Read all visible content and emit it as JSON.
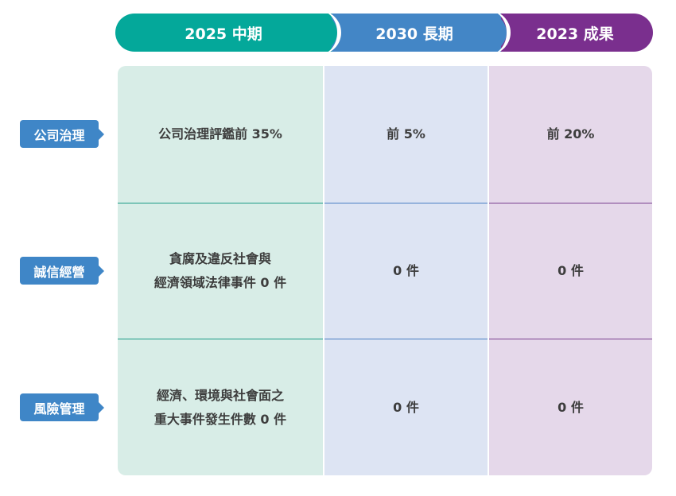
{
  "headers": {
    "mid": "2025 中期",
    "long": "2030 長期",
    "result": "2023 成果"
  },
  "rows": [
    {
      "label": "公司治理",
      "mid": [
        "公司治理評鑑前 35%"
      ],
      "long": "前 5%",
      "result": "前 20%"
    },
    {
      "label": "誠信經營",
      "mid": [
        "貪腐及違反社會與",
        "經濟領域法律事件 0 件"
      ],
      "long": "0 件",
      "result": "0 件"
    },
    {
      "label": "風險管理",
      "mid": [
        "經濟、環境與社會面之",
        "重大事件發生件數 0 件"
      ],
      "long": "0 件",
      "result": "0 件"
    }
  ],
  "colors": {
    "mid_header": "#04a89a",
    "long_header": "#4386c6",
    "result_header": "#7a2f8e",
    "mid_bg": "#d8ede7",
    "long_bg": "#dde4f3",
    "result_bg": "#e5d8ea",
    "row_tag": "#3f86c7"
  }
}
